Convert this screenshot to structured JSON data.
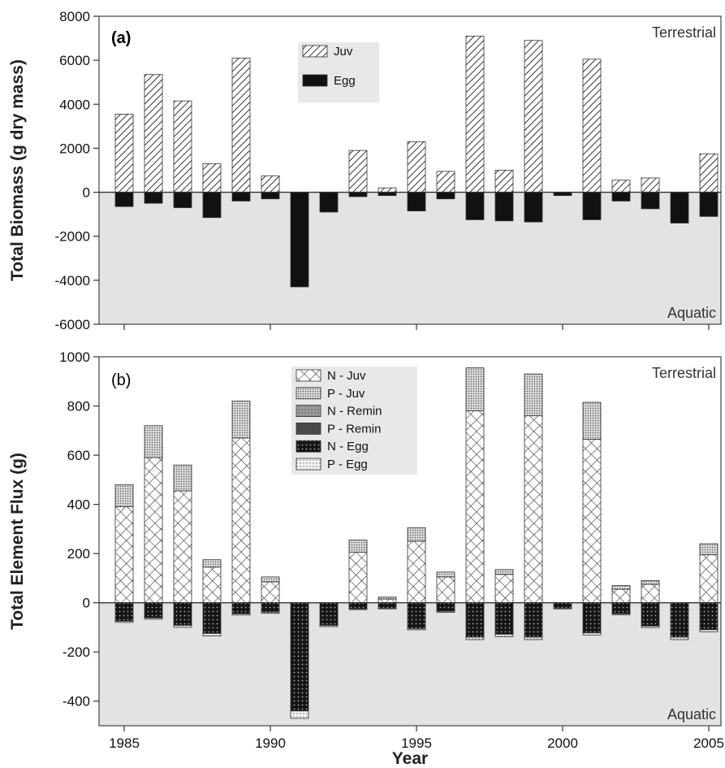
{
  "chart_data": [
    {
      "panel": "(a)",
      "type": "bar",
      "ylabel": "Total Biomass (g dry mass)",
      "xlabel": "Year",
      "top_label": "Terrestrial",
      "bottom_label": "Aquatic",
      "ylim": [
        -6000,
        8000
      ],
      "yticks": [
        -6000,
        -4000,
        -2000,
        0,
        2000,
        4000,
        6000,
        8000
      ],
      "x": [
        1985,
        1986,
        1987,
        1988,
        1989,
        1990,
        1991,
        1992,
        1993,
        1994,
        1995,
        1996,
        1997,
        1998,
        1999,
        2000,
        2001,
        2002,
        2003,
        2004,
        2005
      ],
      "series": [
        {
          "name": "Juv",
          "pattern": "diag",
          "values": [
            3550,
            5350,
            4150,
            1300,
            6100,
            750,
            0,
            0,
            1900,
            200,
            2300,
            950,
            7100,
            1000,
            6900,
            0,
            6050,
            550,
            650,
            0,
            1750
          ]
        },
        {
          "name": "Egg",
          "pattern": "black",
          "values": [
            -650,
            -500,
            -700,
            -1150,
            -400,
            -300,
            -4300,
            -900,
            -200,
            -150,
            -850,
            -300,
            -1250,
            -1300,
            -1350,
            -150,
            -1250,
            -400,
            -750,
            -1400,
            -1100
          ]
        }
      ],
      "legend": "top-center",
      "shaded_region": "below-zero"
    },
    {
      "panel": "(b)",
      "type": "bar",
      "ylabel": "Total Element Flux (g)",
      "xlabel": "Year",
      "top_label": "Terrestrial",
      "bottom_label": "Aquatic",
      "ylim": [
        -500,
        1000
      ],
      "yticks": [
        -400,
        -200,
        0,
        200,
        400,
        600,
        800,
        1000
      ],
      "x": [
        1985,
        1986,
        1987,
        1988,
        1989,
        1990,
        1991,
        1992,
        1993,
        1994,
        1995,
        1996,
        1997,
        1998,
        1999,
        2000,
        2001,
        2002,
        2003,
        2004,
        2005
      ],
      "xticks": [
        1985,
        1990,
        1995,
        2000,
        2005
      ],
      "series": [
        {
          "name": "N - Juv",
          "pattern": "crosshatch",
          "stack": "pos",
          "values": [
            390,
            590,
            455,
            145,
            670,
            85,
            0,
            0,
            205,
            15,
            250,
            105,
            780,
            115,
            760,
            0,
            665,
            55,
            75,
            0,
            195
          ]
        },
        {
          "name": "P - Juv",
          "pattern": "fine-dots",
          "stack": "pos",
          "values": [
            90,
            130,
            105,
            30,
            150,
            20,
            0,
            0,
            50,
            8,
            55,
            20,
            175,
            20,
            170,
            0,
            150,
            15,
            15,
            0,
            45
          ]
        },
        {
          "name": "N - Remin",
          "pattern": "gray-dots",
          "stack": "neg",
          "values": [
            0,
            0,
            0,
            0,
            0,
            0,
            0,
            0,
            0,
            0,
            0,
            0,
            0,
            0,
            0,
            0,
            0,
            0,
            0,
            0,
            0
          ]
        },
        {
          "name": "P - Remin",
          "pattern": "dark-gray",
          "stack": "neg",
          "values": [
            0,
            0,
            0,
            0,
            0,
            0,
            0,
            0,
            0,
            0,
            0,
            0,
            0,
            0,
            0,
            0,
            0,
            0,
            0,
            0,
            0
          ]
        },
        {
          "name": "N - Egg",
          "pattern": "black-dots",
          "stack": "neg",
          "values": [
            -75,
            -62,
            -92,
            -125,
            -45,
            -38,
            -440,
            -92,
            -25,
            -22,
            -105,
            -35,
            -140,
            -128,
            -140,
            -22,
            -123,
            -45,
            -95,
            -140,
            -110
          ]
        },
        {
          "name": "P - Egg",
          "pattern": "light-dots",
          "stack": "neg",
          "values": [
            -5,
            -5,
            -8,
            -10,
            -5,
            -5,
            -30,
            -5,
            -3,
            -3,
            -5,
            -4,
            -10,
            -10,
            -10,
            -3,
            -8,
            -4,
            -6,
            -10,
            -8
          ]
        }
      ],
      "legend": "top-center",
      "shaded_region": "below-zero"
    }
  ]
}
